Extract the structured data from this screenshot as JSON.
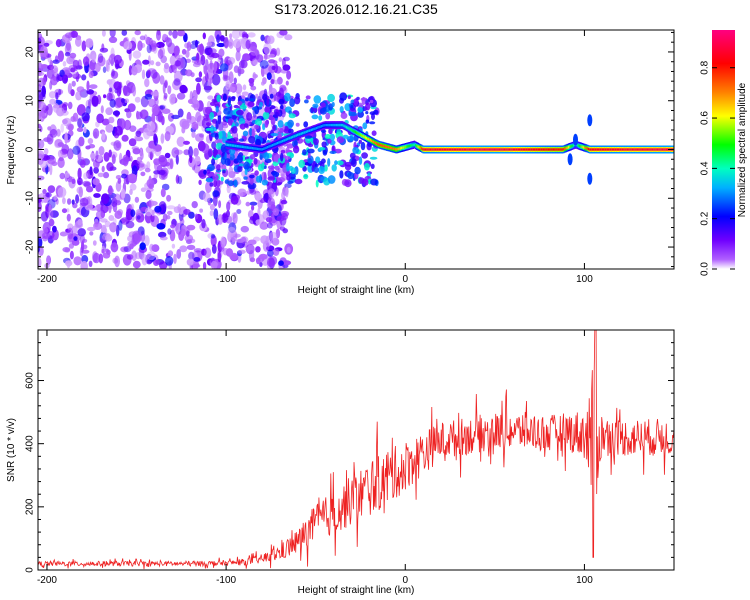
{
  "page_title": "S173.2026.012.16.21.C35",
  "chart_data": [
    {
      "type": "heatmap",
      "title": "S173.2026.012.16.21.C35",
      "xlabel": "Height of straight line (km)",
      "ylabel": "Frequency (Hz)",
      "xlim": [
        -205,
        150
      ],
      "ylim": [
        -24.5,
        24.5
      ],
      "xticks": [
        -200,
        -100,
        0,
        100
      ],
      "xtick_labels": [
        "-200",
        "-100",
        "0",
        "100"
      ],
      "yticks": [
        -20,
        -10,
        0,
        10,
        20
      ],
      "ytick_labels": [
        "-20",
        "-10",
        "0",
        "10",
        "20"
      ],
      "colorbar": {
        "label": "Normalized spectral amplitude",
        "range": [
          0,
          0.95
        ],
        "ticks": [
          0,
          0.2,
          0.4,
          0.6,
          0.8
        ],
        "tick_labels": [
          "0.0",
          "0.2",
          "0.4",
          "0.6",
          "0.8"
        ],
        "colors": [
          "#ffffff",
          "#8000ff",
          "#0000ff",
          "#00ffff",
          "#00ff00",
          "#ffff00",
          "#ff8000",
          "#ff0000",
          "#ff0080"
        ]
      },
      "signal_track": [
        {
          "x": -100,
          "freq": 1,
          "amp": 0.35
        },
        {
          "x": -80,
          "freq": 0,
          "amp": 0.3
        },
        {
          "x": -60,
          "freq": 3,
          "amp": 0.35
        },
        {
          "x": -45,
          "freq": 5,
          "amp": 0.3
        },
        {
          "x": -35,
          "freq": 5,
          "amp": 0.35
        },
        {
          "x": -25,
          "freq": 3,
          "amp": 0.55
        },
        {
          "x": -15,
          "freq": 1,
          "amp": 0.75
        },
        {
          "x": -5,
          "freq": 0,
          "amp": 0.7
        },
        {
          "x": 5,
          "freq": 1,
          "amp": 0.4
        },
        {
          "x": 10,
          "freq": 0,
          "amp": 0.85
        },
        {
          "x": 50,
          "freq": 0,
          "amp": 0.9
        },
        {
          "x": 88,
          "freq": 0,
          "amp": 0.8
        },
        {
          "x": 95,
          "freq": 1,
          "amp": 0.35
        },
        {
          "x": 103,
          "freq": 0,
          "amp": 0.85
        },
        {
          "x": 150,
          "freq": 0,
          "amp": 0.9
        }
      ],
      "noise_region": {
        "x_from": -205,
        "x_to": -65,
        "freq_span": [
          -24,
          24
        ],
        "amp": 0.1
      }
    },
    {
      "type": "line",
      "xlabel": "Height of straight line (km)",
      "ylabel": "SNR (10 * v/v)",
      "xlim": [
        -205,
        150
      ],
      "ylim": [
        0,
        760
      ],
      "xticks": [
        -200,
        -100,
        0,
        100
      ],
      "xtick_labels": [
        "-200",
        "-100",
        "0",
        "100"
      ],
      "yticks": [
        0,
        200,
        400,
        600
      ],
      "ytick_labels": [
        "0",
        "200",
        "400",
        "600"
      ],
      "series": [
        {
          "name": "SNR",
          "color": "#ee2222",
          "x": [
            -205,
            -180,
            -150,
            -120,
            -100,
            -90,
            -80,
            -70,
            -60,
            -50,
            -40,
            -30,
            -20,
            -10,
            0,
            10,
            20,
            30,
            40,
            50,
            60,
            70,
            80,
            90,
            100,
            105,
            110,
            120,
            130,
            140,
            150
          ],
          "mean": [
            20,
            20,
            20,
            20,
            22,
            25,
            35,
            55,
            90,
            150,
            180,
            220,
            260,
            290,
            330,
            370,
            410,
            420,
            430,
            440,
            440,
            440,
            430,
            440,
            430,
            400,
            430,
            420,
            420,
            420,
            420
          ],
          "fluct": [
            8,
            8,
            8,
            8,
            8,
            10,
            15,
            25,
            40,
            60,
            70,
            80,
            90,
            90,
            80,
            70,
            60,
            60,
            60,
            60,
            60,
            60,
            60,
            60,
            80,
            250,
            60,
            60,
            60,
            60,
            60
          ],
          "peak": {
            "x": 106,
            "y": 760
          },
          "dip": {
            "x": 106,
            "y": 40
          }
        }
      ]
    }
  ]
}
